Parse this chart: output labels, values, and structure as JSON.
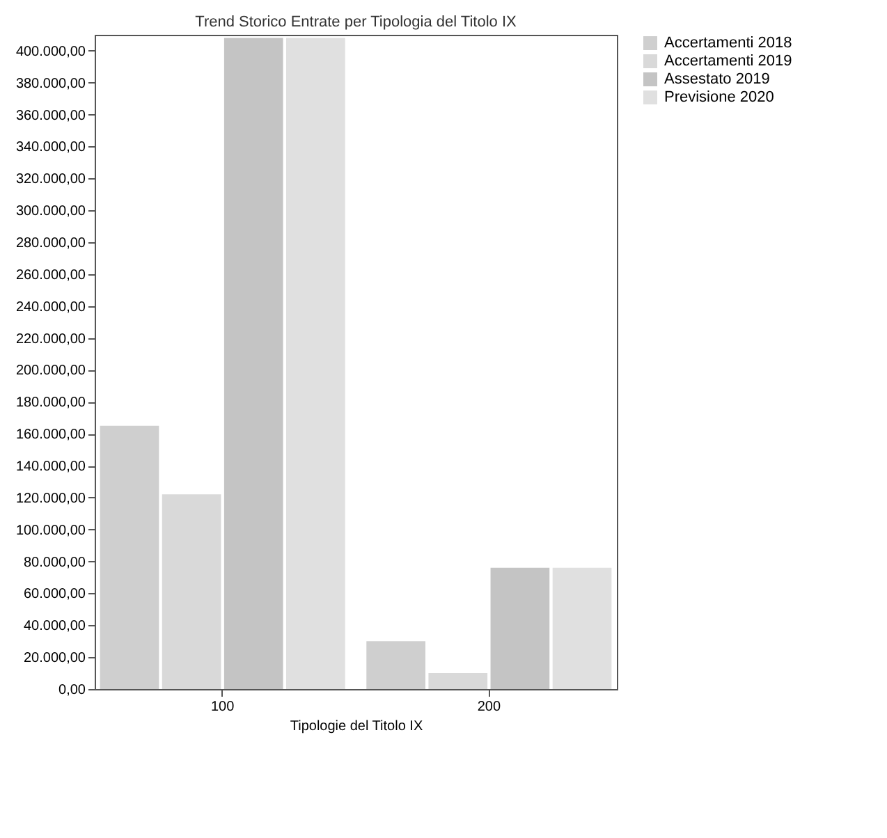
{
  "chart_data": {
    "type": "bar",
    "title": "Trend Storico Entrate per Tipologia del Titolo IX",
    "xlabel": "Tipologie del Titolo IX",
    "categories": [
      "100",
      "200"
    ],
    "series": [
      {
        "name": "Accertamenti 2018",
        "color": "#cfcfcf",
        "values": [
          165000,
          30000
        ]
      },
      {
        "name": "Accertamenti 2019",
        "color": "#d9d9d9",
        "values": [
          122000,
          10000
        ]
      },
      {
        "name": "Assestato 2019",
        "color": "#c4c4c4",
        "values": [
          408000,
          76000
        ]
      },
      {
        "name": "Previsione 2020",
        "color": "#e0e0e0",
        "values": [
          408000,
          76000
        ]
      }
    ],
    "ylim": [
      0,
      410000
    ],
    "yticks": [
      {
        "value": 0,
        "label": "0,00"
      },
      {
        "value": 20000,
        "label": "20.000,00"
      },
      {
        "value": 40000,
        "label": "40.000,00"
      },
      {
        "value": 60000,
        "label": "60.000,00"
      },
      {
        "value": 80000,
        "label": "80.000,00"
      },
      {
        "value": 100000,
        "label": "100.000,00"
      },
      {
        "value": 120000,
        "label": "120.000,00"
      },
      {
        "value": 140000,
        "label": "140.000,00"
      },
      {
        "value": 160000,
        "label": "160.000,00"
      },
      {
        "value": 180000,
        "label": "180.000,00"
      },
      {
        "value": 200000,
        "label": "200.000,00"
      },
      {
        "value": 220000,
        "label": "220.000,00"
      },
      {
        "value": 240000,
        "label": "240.000,00"
      },
      {
        "value": 260000,
        "label": "260.000,00"
      },
      {
        "value": 280000,
        "label": "280.000,00"
      },
      {
        "value": 300000,
        "label": "300.000,00"
      },
      {
        "value": 320000,
        "label": "320.000,00"
      },
      {
        "value": 340000,
        "label": "340.000,00"
      },
      {
        "value": 360000,
        "label": "360.000,00"
      },
      {
        "value": 380000,
        "label": "380.000,00"
      },
      {
        "value": 400000,
        "label": "400.000,00"
      }
    ],
    "grid": false,
    "legend": "top right"
  }
}
